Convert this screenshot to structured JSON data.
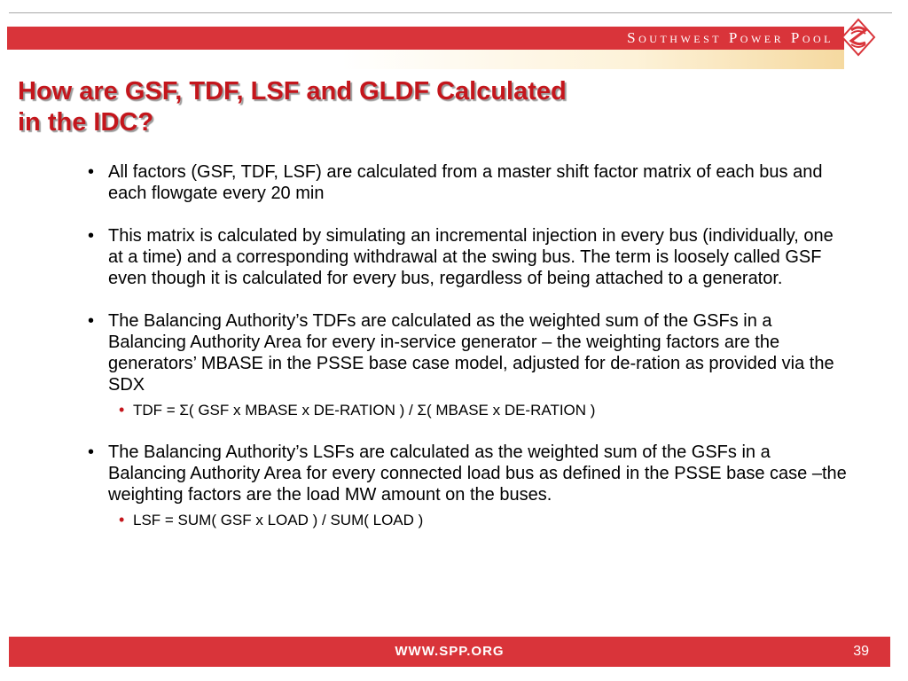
{
  "header": {
    "brand": "Southwest Power Pool",
    "logo_icon": "spp-emblem-icon",
    "colors": {
      "accent": "#d9343a",
      "title": "#c4161c"
    }
  },
  "slide": {
    "title_line1": "How are GSF, TDF, LSF and GLDF Calculated",
    "title_line2": "in the IDC?",
    "bullets": [
      {
        "text": "All factors (GSF, TDF, LSF) are calculated from a master shift factor matrix of each bus and each flowgate every 20 min"
      },
      {
        "text": "This matrix is calculated by simulating an incremental injection in every bus (individually, one at a time) and a corresponding withdrawal at the swing bus. The term is loosely called GSF even though it is calculated for every bus, regardless of being attached to a generator."
      },
      {
        "text": "The Balancing Authority’s TDFs are calculated as the weighted sum of the GSFs in a Balancing Authority Area for every in-service generator – the weighting factors are the generators’ MBASE in the PSSE base case model, adjusted for de-ration as provided via the SDX",
        "sub": "TDF = Σ( GSF x MBASE x DE-RATION ) / Σ( MBASE x DE-RATION )"
      },
      {
        "text": "The Balancing Authority’s LSFs are calculated as the weighted sum of the GSFs in a Balancing Authority Area for every connected load bus as defined in the PSSE base case –the weighting factors are the load MW amount on the buses.",
        "sub": "LSF = SUM( GSF x LOAD ) / SUM( LOAD )"
      }
    ],
    "bullet_glyph": "•"
  },
  "footer": {
    "url": "WWW.SPP.ORG",
    "page_number": "39"
  }
}
